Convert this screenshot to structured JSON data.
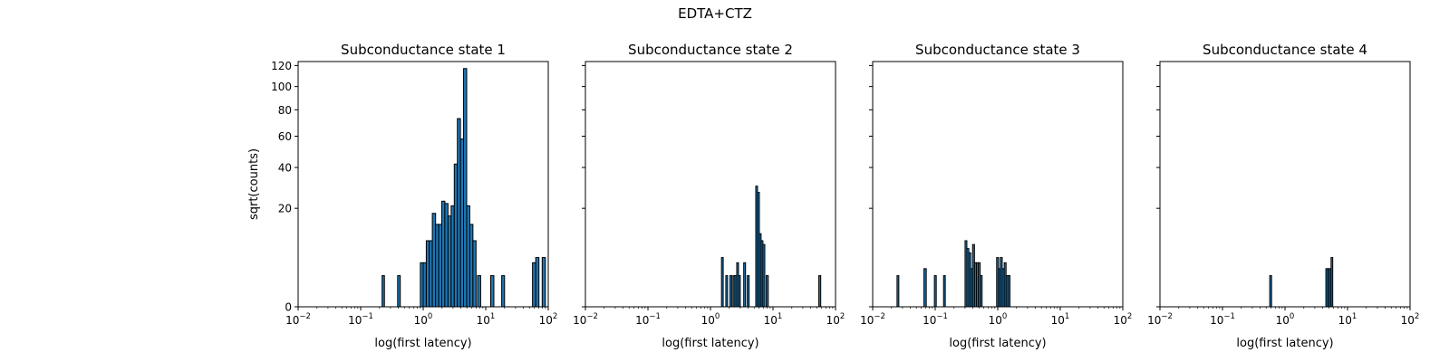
{
  "figure": {
    "suptitle": "EDTA+CTZ",
    "bar_color": "#1f77b4",
    "edge_color": "#000000"
  },
  "chart_data": [
    {
      "type": "bar",
      "title": "Subconductance state 1",
      "xlabel": "log(first latency)",
      "ylabel": "sqrt(counts)",
      "xscale": "log",
      "yscale": "sqrt",
      "xlim": [
        0.01,
        100
      ],
      "ylim": [
        0,
        124
      ],
      "xticks": [
        0.01,
        0.1,
        1,
        10,
        100
      ],
      "xtick_labels": [
        "10^-2",
        "10^-1",
        "10^0",
        "10^1",
        "10^2"
      ],
      "yticks": [
        0,
        20,
        40,
        60,
        80,
        100,
        120
      ],
      "ytick_labels": [
        "0",
        "20",
        "40",
        "60",
        "80",
        "100",
        "120"
      ],
      "bins": [
        {
          "x0": 0.22,
          "x1": 0.24,
          "count": 2
        },
        {
          "x0": 0.39,
          "x1": 0.43,
          "count": 2
        },
        {
          "x0": 0.9,
          "x1": 1.0,
          "count": 4
        },
        {
          "x0": 1.0,
          "x1": 1.12,
          "count": 4
        },
        {
          "x0": 1.12,
          "x1": 1.25,
          "count": 9
        },
        {
          "x0": 1.25,
          "x1": 1.4,
          "count": 9
        },
        {
          "x0": 1.4,
          "x1": 1.58,
          "count": 18
        },
        {
          "x0": 1.58,
          "x1": 1.77,
          "count": 14
        },
        {
          "x0": 1.77,
          "x1": 1.98,
          "count": 14
        },
        {
          "x0": 1.98,
          "x1": 2.22,
          "count": 23
        },
        {
          "x0": 2.22,
          "x1": 2.49,
          "count": 22
        },
        {
          "x0": 2.49,
          "x1": 2.8,
          "count": 17
        },
        {
          "x0": 2.8,
          "x1": 3.14,
          "count": 21
        },
        {
          "x0": 3.14,
          "x1": 3.52,
          "count": 42
        },
        {
          "x0": 3.52,
          "x1": 3.94,
          "count": 73
        },
        {
          "x0": 3.94,
          "x1": 4.42,
          "count": 58
        },
        {
          "x0": 4.42,
          "x1": 4.96,
          "count": 117
        },
        {
          "x0": 4.96,
          "x1": 5.56,
          "count": 21
        },
        {
          "x0": 5.56,
          "x1": 6.24,
          "count": 14
        },
        {
          "x0": 6.24,
          "x1": 7.0,
          "count": 9
        },
        {
          "x0": 7.4,
          "x1": 8.3,
          "count": 2
        },
        {
          "x0": 12.0,
          "x1": 13.5,
          "count": 2
        },
        {
          "x0": 18.0,
          "x1": 20.0,
          "count": 2
        },
        {
          "x0": 56.0,
          "x1": 63.0,
          "count": 4
        },
        {
          "x0": 63.0,
          "x1": 71.0,
          "count": 5
        },
        {
          "x0": 80.0,
          "x1": 90.0,
          "count": 5
        }
      ]
    },
    {
      "type": "bar",
      "title": "Subconductance state 2",
      "xlabel": "log(first latency)",
      "ylabel": "",
      "xscale": "log",
      "yscale": "sqrt",
      "xlim": [
        0.01,
        100
      ],
      "ylim": [
        0,
        124
      ],
      "xticks": [
        0.01,
        0.1,
        1,
        10,
        100
      ],
      "xtick_labels": [
        "10^-2",
        "10^-1",
        "10^0",
        "10^1",
        "10^2"
      ],
      "yticks": [
        0,
        20,
        40,
        60,
        80,
        100,
        120
      ],
      "ytick_labels": [],
      "bins": [
        {
          "x0": 1.5,
          "x1": 1.6,
          "count": 5
        },
        {
          "x0": 1.76,
          "x1": 1.88,
          "count": 2
        },
        {
          "x0": 2.05,
          "x1": 2.2,
          "count": 2
        },
        {
          "x0": 2.3,
          "x1": 2.46,
          "count": 2
        },
        {
          "x0": 2.46,
          "x1": 2.63,
          "count": 2
        },
        {
          "x0": 2.63,
          "x1": 2.81,
          "count": 4
        },
        {
          "x0": 2.81,
          "x1": 3.0,
          "count": 2
        },
        {
          "x0": 3.4,
          "x1": 3.64,
          "count": 4
        },
        {
          "x0": 3.88,
          "x1": 4.15,
          "count": 2
        },
        {
          "x0": 5.3,
          "x1": 5.66,
          "count": 30
        },
        {
          "x0": 5.66,
          "x1": 6.05,
          "count": 27
        },
        {
          "x0": 6.05,
          "x1": 6.46,
          "count": 11
        },
        {
          "x0": 6.46,
          "x1": 6.9,
          "count": 9
        },
        {
          "x0": 6.9,
          "x1": 7.4,
          "count": 8
        },
        {
          "x0": 7.8,
          "x1": 8.4,
          "count": 2
        },
        {
          "x0": 54.0,
          "x1": 58.0,
          "count": 2
        }
      ]
    },
    {
      "type": "bar",
      "title": "Subconductance state 3",
      "xlabel": "log(first latency)",
      "ylabel": "",
      "xscale": "log",
      "yscale": "sqrt",
      "xlim": [
        0.01,
        100
      ],
      "ylim": [
        0,
        124
      ],
      "xticks": [
        0.01,
        0.1,
        1,
        10,
        100
      ],
      "xtick_labels": [
        "10^-2",
        "10^-1",
        "10^0",
        "10^1",
        "10^2"
      ],
      "yticks": [
        0,
        20,
        40,
        60,
        80,
        100,
        120
      ],
      "ytick_labels": [],
      "bins": [
        {
          "x0": 0.0245,
          "x1": 0.0262,
          "count": 2
        },
        {
          "x0": 0.066,
          "x1": 0.072,
          "count": 3
        },
        {
          "x0": 0.097,
          "x1": 0.104,
          "count": 2
        },
        {
          "x0": 0.136,
          "x1": 0.145,
          "count": 2
        },
        {
          "x0": 0.3,
          "x1": 0.321,
          "count": 9
        },
        {
          "x0": 0.321,
          "x1": 0.345,
          "count": 7
        },
        {
          "x0": 0.345,
          "x1": 0.37,
          "count": 6
        },
        {
          "x0": 0.37,
          "x1": 0.396,
          "count": 3
        },
        {
          "x0": 0.396,
          "x1": 0.425,
          "count": 8
        },
        {
          "x0": 0.425,
          "x1": 0.456,
          "count": 4
        },
        {
          "x0": 0.456,
          "x1": 0.488,
          "count": 4
        },
        {
          "x0": 0.488,
          "x1": 0.524,
          "count": 4
        },
        {
          "x0": 0.524,
          "x1": 0.562,
          "count": 2
        },
        {
          "x0": 0.96,
          "x1": 1.03,
          "count": 5
        },
        {
          "x0": 1.03,
          "x1": 1.1,
          "count": 3
        },
        {
          "x0": 1.1,
          "x1": 1.18,
          "count": 5
        },
        {
          "x0": 1.18,
          "x1": 1.27,
          "count": 3
        },
        {
          "x0": 1.27,
          "x1": 1.36,
          "count": 4
        },
        {
          "x0": 1.36,
          "x1": 1.46,
          "count": 2
        },
        {
          "x0": 1.46,
          "x1": 1.57,
          "count": 2
        }
      ]
    },
    {
      "type": "bar",
      "title": "Subconductance state 4",
      "xlabel": "log(first latency)",
      "ylabel": "",
      "xscale": "log",
      "yscale": "sqrt",
      "xlim": [
        0.01,
        100
      ],
      "ylim": [
        0,
        124
      ],
      "xticks": [
        0.01,
        0.1,
        1,
        10,
        100
      ],
      "xtick_labels": [
        "10^-2",
        "10^-1",
        "10^0",
        "10^1",
        "10^2"
      ],
      "yticks": [
        0,
        20,
        40,
        60,
        80,
        100,
        120
      ],
      "ytick_labels": [],
      "bins": [
        {
          "x0": 0.57,
          "x1": 0.61,
          "count": 2
        },
        {
          "x0": 4.5,
          "x1": 4.8,
          "count": 3
        },
        {
          "x0": 4.8,
          "x1": 5.1,
          "count": 3
        },
        {
          "x0": 5.1,
          "x1": 5.45,
          "count": 3
        },
        {
          "x0": 5.45,
          "x1": 5.8,
          "count": 5
        }
      ]
    }
  ]
}
